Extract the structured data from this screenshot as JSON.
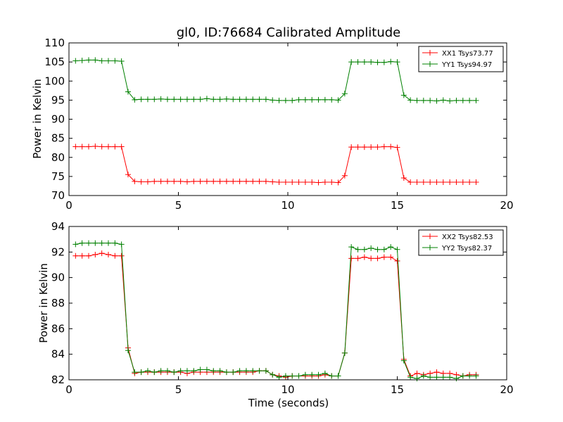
{
  "chart_data": [
    {
      "type": "line",
      "title": "gl0, ID:76684 Calibrated Amplitude",
      "xlabel": "",
      "ylabel": "Power in Kelvin",
      "xlim": [
        0,
        20
      ],
      "ylim": [
        70,
        110
      ],
      "xticks": [
        0,
        5,
        10,
        15,
        20
      ],
      "yticks": [
        70,
        75,
        80,
        85,
        90,
        95,
        100,
        105,
        110
      ],
      "legend_position": "top-right",
      "series": [
        {
          "name": "XX1 Tsys73.77",
          "color": "#ff0000",
          "marker": "+",
          "x": [
            0.3,
            0.6,
            0.9,
            1.2,
            1.5,
            1.8,
            2.1,
            2.4,
            2.7,
            3.0,
            3.3,
            3.6,
            3.9,
            4.2,
            4.5,
            4.8,
            5.1,
            5.4,
            5.7,
            6.0,
            6.3,
            6.6,
            6.9,
            7.2,
            7.5,
            7.8,
            8.1,
            8.4,
            8.7,
            9.0,
            9.3,
            9.6,
            9.9,
            10.2,
            10.5,
            10.8,
            11.1,
            11.4,
            11.7,
            12.0,
            12.3,
            12.6,
            12.9,
            13.2,
            13.5,
            13.8,
            14.1,
            14.4,
            14.7,
            15.0,
            15.3,
            15.6,
            15.9,
            16.2,
            16.5,
            16.8,
            17.1,
            17.4,
            17.7,
            18.0,
            18.3,
            18.6
          ],
          "y": [
            82.8,
            82.8,
            82.8,
            82.9,
            82.8,
            82.8,
            82.8,
            82.8,
            75.5,
            73.7,
            73.6,
            73.6,
            73.7,
            73.7,
            73.7,
            73.7,
            73.7,
            73.6,
            73.7,
            73.7,
            73.7,
            73.7,
            73.7,
            73.7,
            73.7,
            73.7,
            73.7,
            73.7,
            73.7,
            73.7,
            73.6,
            73.5,
            73.5,
            73.5,
            73.5,
            73.5,
            73.5,
            73.4,
            73.5,
            73.5,
            73.4,
            75.2,
            82.7,
            82.7,
            82.7,
            82.7,
            82.7,
            82.8,
            82.8,
            82.6,
            74.6,
            73.5,
            73.5,
            73.5,
            73.5,
            73.5,
            73.5,
            73.5,
            73.5,
            73.5,
            73.5,
            73.5
          ]
        },
        {
          "name": "YY1 Tsys94.97",
          "color": "#008000",
          "marker": "+",
          "x": [
            0.3,
            0.6,
            0.9,
            1.2,
            1.5,
            1.8,
            2.1,
            2.4,
            2.7,
            3.0,
            3.3,
            3.6,
            3.9,
            4.2,
            4.5,
            4.8,
            5.1,
            5.4,
            5.7,
            6.0,
            6.3,
            6.6,
            6.9,
            7.2,
            7.5,
            7.8,
            8.1,
            8.4,
            8.7,
            9.0,
            9.3,
            9.6,
            9.9,
            10.2,
            10.5,
            10.8,
            11.1,
            11.4,
            11.7,
            12.0,
            12.3,
            12.6,
            12.9,
            13.2,
            13.5,
            13.8,
            14.1,
            14.4,
            14.7,
            15.0,
            15.3,
            15.6,
            15.9,
            16.2,
            16.5,
            16.8,
            17.1,
            17.4,
            17.7,
            18.0,
            18.3,
            18.6
          ],
          "y": [
            105.3,
            105.4,
            105.5,
            105.5,
            105.3,
            105.3,
            105.3,
            105.2,
            97.2,
            95.1,
            95.2,
            95.2,
            95.2,
            95.3,
            95.2,
            95.2,
            95.2,
            95.2,
            95.2,
            95.2,
            95.4,
            95.2,
            95.2,
            95.3,
            95.2,
            95.2,
            95.2,
            95.2,
            95.2,
            95.2,
            95.0,
            94.9,
            94.9,
            94.9,
            95.1,
            95.1,
            95.1,
            95.1,
            95.1,
            95.1,
            95.0,
            96.7,
            105.0,
            105.0,
            105.0,
            105.0,
            104.9,
            104.9,
            105.1,
            105.0,
            96.3,
            95.0,
            94.9,
            94.9,
            94.9,
            94.8,
            95.0,
            94.8,
            94.9,
            94.9,
            94.9,
            94.9
          ]
        }
      ]
    },
    {
      "type": "line",
      "title": "",
      "xlabel": "Time (seconds)",
      "ylabel": "Power in Kelvin",
      "xlim": [
        0,
        20
      ],
      "ylim": [
        82,
        94
      ],
      "xticks": [
        0,
        5,
        10,
        15,
        20
      ],
      "yticks": [
        82,
        84,
        86,
        88,
        90,
        92,
        94
      ],
      "legend_position": "top-right",
      "series": [
        {
          "name": "XX2 Tsys82.53",
          "color": "#ff0000",
          "marker": "+",
          "x": [
            0.3,
            0.6,
            0.9,
            1.2,
            1.5,
            1.8,
            2.1,
            2.4,
            2.7,
            3.0,
            3.3,
            3.6,
            3.9,
            4.2,
            4.5,
            4.8,
            5.1,
            5.4,
            5.7,
            6.0,
            6.3,
            6.6,
            6.9,
            7.2,
            7.5,
            7.8,
            8.1,
            8.4,
            8.7,
            9.0,
            9.3,
            9.6,
            9.9,
            10.2,
            10.5,
            10.8,
            11.1,
            11.4,
            11.7,
            12.0,
            12.3,
            12.6,
            12.9,
            13.2,
            13.5,
            13.8,
            14.1,
            14.4,
            14.7,
            15.0,
            15.3,
            15.6,
            15.9,
            16.2,
            16.5,
            16.8,
            17.1,
            17.4,
            17.7,
            18.0,
            18.3,
            18.6
          ],
          "y": [
            91.7,
            91.7,
            91.7,
            91.8,
            91.9,
            91.8,
            91.7,
            91.7,
            84.5,
            82.5,
            82.6,
            82.6,
            82.6,
            82.6,
            82.6,
            82.6,
            82.6,
            82.5,
            82.6,
            82.6,
            82.6,
            82.6,
            82.6,
            82.6,
            82.6,
            82.6,
            82.6,
            82.6,
            82.7,
            82.7,
            82.4,
            82.3,
            82.2,
            82.3,
            82.3,
            82.3,
            82.3,
            82.3,
            82.4,
            82.3,
            82.3,
            84.1,
            91.5,
            91.5,
            91.6,
            91.5,
            91.5,
            91.6,
            91.6,
            91.3,
            83.6,
            82.3,
            82.5,
            82.4,
            82.5,
            82.6,
            82.5,
            82.5,
            82.4,
            82.3,
            82.4,
            82.4
          ]
        },
        {
          "name": "YY2 Tsys82.37",
          "color": "#008000",
          "marker": "+",
          "x": [
            0.3,
            0.6,
            0.9,
            1.2,
            1.5,
            1.8,
            2.1,
            2.4,
            2.7,
            3.0,
            3.3,
            3.6,
            3.9,
            4.2,
            4.5,
            4.8,
            5.1,
            5.4,
            5.7,
            6.0,
            6.3,
            6.6,
            6.9,
            7.2,
            7.5,
            7.8,
            8.1,
            8.4,
            8.7,
            9.0,
            9.3,
            9.6,
            9.9,
            10.2,
            10.5,
            10.8,
            11.1,
            11.4,
            11.7,
            12.0,
            12.3,
            12.6,
            12.9,
            13.2,
            13.5,
            13.8,
            14.1,
            14.4,
            14.7,
            15.0,
            15.3,
            15.6,
            15.9,
            16.2,
            16.5,
            16.8,
            17.1,
            17.4,
            17.7,
            18.0,
            18.3,
            18.6
          ],
          "y": [
            92.6,
            92.7,
            92.7,
            92.7,
            92.7,
            92.7,
            92.7,
            92.6,
            84.3,
            82.6,
            82.6,
            82.7,
            82.6,
            82.7,
            82.7,
            82.6,
            82.7,
            82.7,
            82.7,
            82.8,
            82.8,
            82.7,
            82.7,
            82.6,
            82.6,
            82.7,
            82.7,
            82.7,
            82.7,
            82.7,
            82.4,
            82.2,
            82.3,
            82.3,
            82.3,
            82.4,
            82.4,
            82.4,
            82.5,
            82.3,
            82.3,
            84.1,
            92.4,
            92.2,
            92.2,
            92.3,
            92.2,
            92.2,
            92.4,
            92.2,
            83.5,
            82.2,
            82.1,
            82.3,
            82.2,
            82.2,
            82.2,
            82.2,
            82.1,
            82.3,
            82.3,
            82.3
          ]
        }
      ]
    }
  ]
}
